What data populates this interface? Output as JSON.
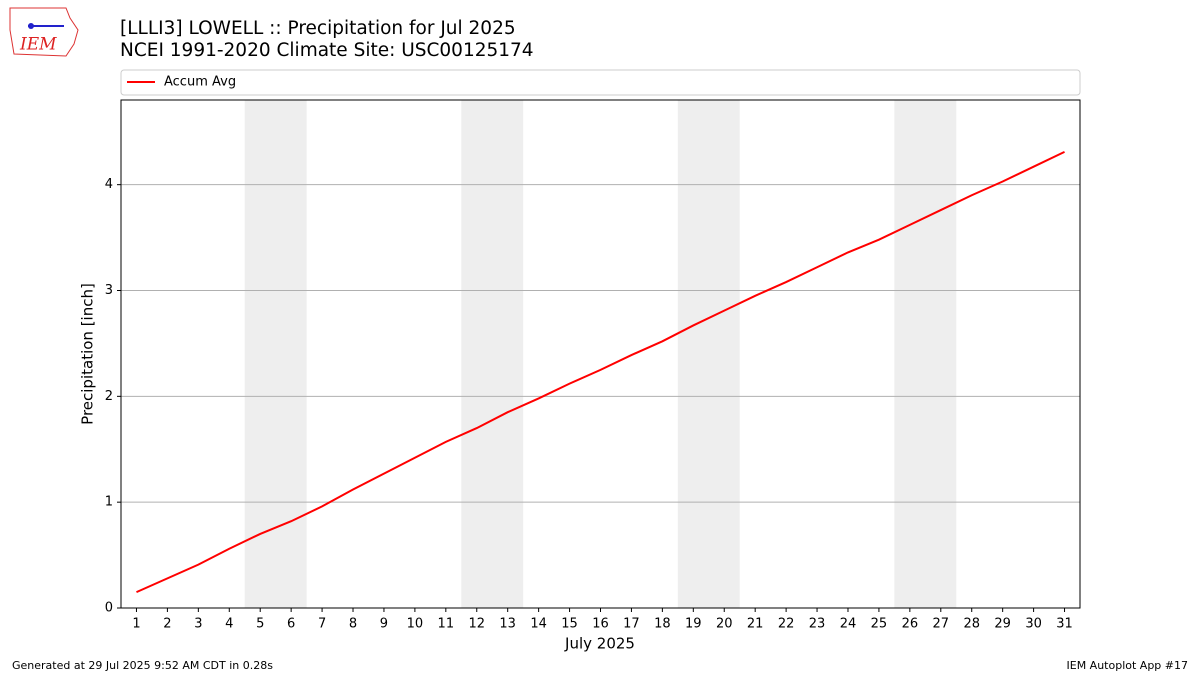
{
  "logo_text": "IEM",
  "footer_left": "Generated at 29 Jul 2025 9:52 AM CDT in 0.28s",
  "footer_right": "IEM Autoplot App #17",
  "chart_data": {
    "type": "line",
    "title": "[LLLI3] LOWELL :: Precipitation for Jul 2025",
    "subtitle": "NCEI 1991-2020 Climate Site: USC00125174",
    "xlabel": "July 2025",
    "ylabel": "Precipitation [inch]",
    "x": [
      1,
      2,
      3,
      4,
      5,
      6,
      7,
      8,
      9,
      10,
      11,
      12,
      13,
      14,
      15,
      16,
      17,
      18,
      19,
      20,
      21,
      22,
      23,
      24,
      25,
      26,
      27,
      28,
      29,
      30,
      31
    ],
    "series": [
      {
        "name": "Accum Avg",
        "color": "#ff0000",
        "values": [
          0.15,
          0.28,
          0.41,
          0.56,
          0.7,
          0.82,
          0.96,
          1.12,
          1.27,
          1.42,
          1.57,
          1.7,
          1.85,
          1.98,
          2.12,
          2.25,
          2.39,
          2.52,
          2.67,
          2.81,
          2.95,
          3.08,
          3.22,
          3.36,
          3.48,
          3.62,
          3.76,
          3.9,
          4.03,
          4.17,
          4.31
        ]
      }
    ],
    "xlim": [
      0.5,
      31.5
    ],
    "ylim": [
      0,
      4.8
    ],
    "xticks": [
      1,
      2,
      3,
      4,
      5,
      6,
      7,
      8,
      9,
      10,
      11,
      12,
      13,
      14,
      15,
      16,
      17,
      18,
      19,
      20,
      21,
      22,
      23,
      24,
      25,
      26,
      27,
      28,
      29,
      30,
      31
    ],
    "yticks": [
      0,
      1,
      2,
      3,
      4
    ],
    "shaded_spans": [
      [
        4.5,
        6.5
      ],
      [
        11.5,
        13.5
      ],
      [
        18.5,
        20.5
      ],
      [
        25.5,
        27.5
      ]
    ],
    "shade_color": "#eeeeee",
    "grid": "y",
    "legend": "top"
  }
}
